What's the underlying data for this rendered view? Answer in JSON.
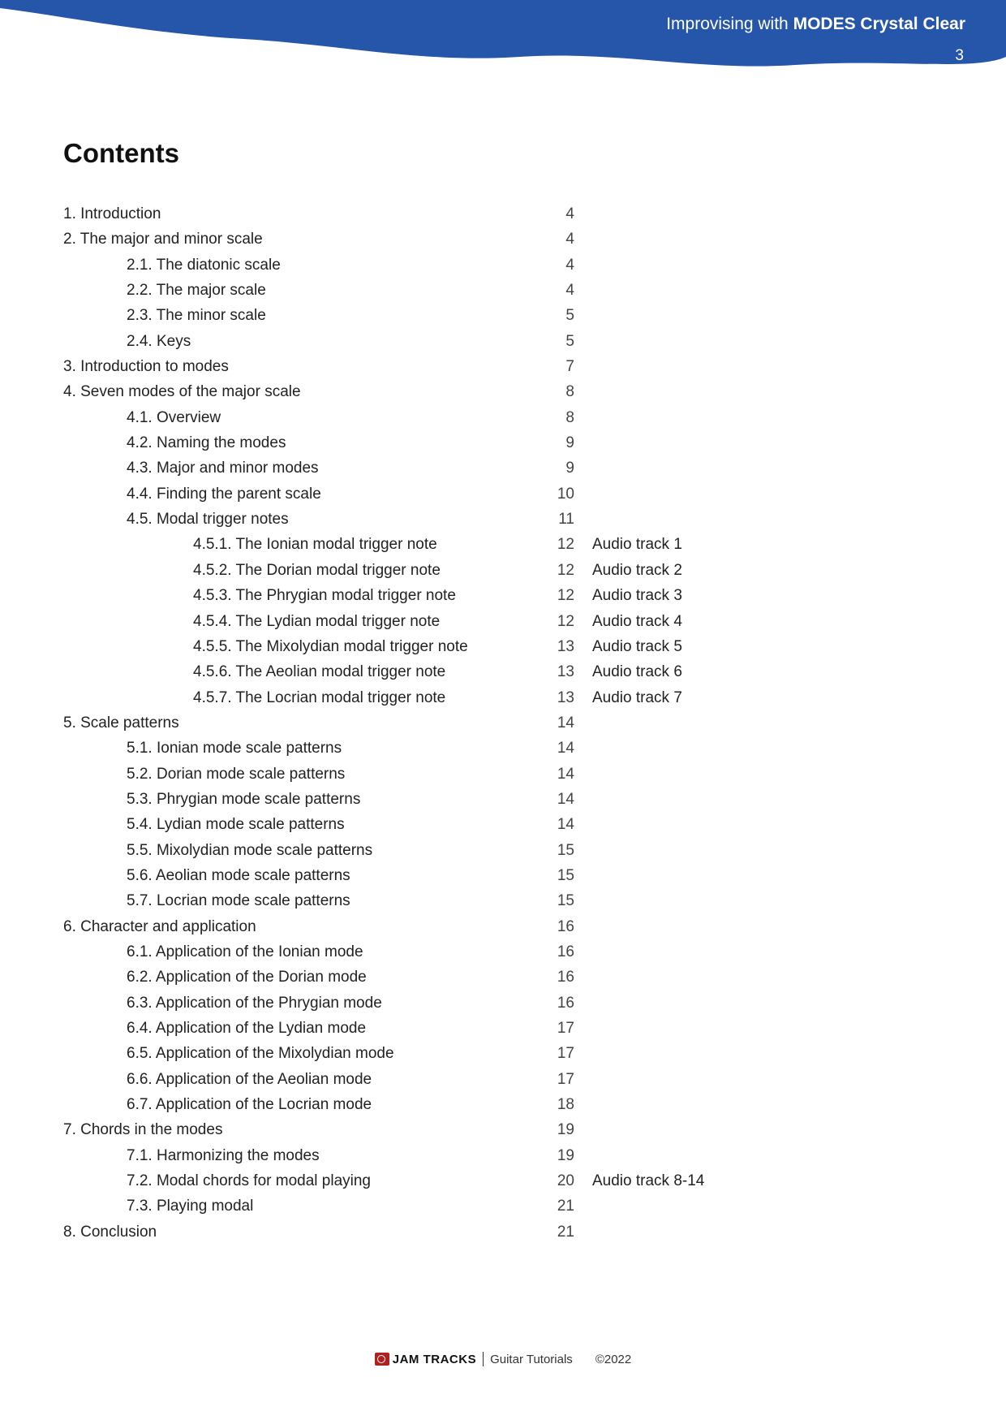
{
  "header": {
    "prefix": "Improvising with ",
    "title_bold": "MODES Crystal Clear",
    "page_number": "3",
    "band_color": "#2556a9"
  },
  "contents_title": "Contents",
  "toc": [
    {
      "label": "1. Introduction",
      "page": "4",
      "indent": 0
    },
    {
      "label": "2. The major and minor scale",
      "page": "4",
      "indent": 0
    },
    {
      "label": "2.1. The diatonic scale",
      "page": "4",
      "indent": 1
    },
    {
      "label": "2.2. The major scale",
      "page": "4",
      "indent": 1
    },
    {
      "label": "2.3. The minor scale",
      "page": "5",
      "indent": 1
    },
    {
      "label": "2.4. Keys",
      "page": "5",
      "indent": 1
    },
    {
      "label": "3. Introduction to modes",
      "page": "7",
      "indent": 0
    },
    {
      "label": "4. Seven modes of the major scale",
      "page": "8",
      "indent": 0
    },
    {
      "label": "4.1. Overview",
      "page": "8",
      "indent": 1
    },
    {
      "label": "4.2. Naming the modes",
      "page": "9",
      "indent": 1
    },
    {
      "label": "4.3. Major and minor modes",
      "page": "9",
      "indent": 1
    },
    {
      "label": "4.4. Finding the parent scale",
      "page": "10",
      "indent": 1
    },
    {
      "label": "4.5. Modal trigger notes",
      "page": "11",
      "indent": 1
    },
    {
      "label": "4.5.1. The Ionian modal trigger note",
      "page": "12",
      "indent": 2,
      "audio": "Audio track 1"
    },
    {
      "label": "4.5.2. The Dorian modal trigger note",
      "page": "12",
      "indent": 2,
      "audio": "Audio track 2"
    },
    {
      "label": "4.5.3. The Phrygian modal trigger note",
      "page": "12",
      "indent": 2,
      "audio": "Audio track 3"
    },
    {
      "label": "4.5.4. The Lydian modal trigger note",
      "page": "12",
      "indent": 2,
      "audio": "Audio track 4"
    },
    {
      "label": "4.5.5. The Mixolydian modal trigger note",
      "page": "13",
      "indent": 2,
      "audio": "Audio track 5"
    },
    {
      "label": "4.5.6. The Aeolian modal trigger note",
      "page": "13",
      "indent": 2,
      "audio": "Audio track 6"
    },
    {
      "label": "4.5.7. The Locrian modal trigger note",
      "page": "13",
      "indent": 2,
      "audio": "Audio track 7"
    },
    {
      "label": "5. Scale patterns",
      "page": "14",
      "indent": 0
    },
    {
      "label": "5.1. Ionian mode scale patterns",
      "page": "14",
      "indent": 1
    },
    {
      "label": "5.2. Dorian mode scale patterns",
      "page": "14",
      "indent": 1
    },
    {
      "label": "5.3. Phrygian mode scale patterns",
      "page": "14",
      "indent": 1
    },
    {
      "label": "5.4. Lydian mode scale patterns",
      "page": "14",
      "indent": 1
    },
    {
      "label": "5.5. Mixolydian mode scale patterns",
      "page": "15",
      "indent": 1
    },
    {
      "label": "5.6. Aeolian mode scale patterns",
      "page": "15",
      "indent": 1
    },
    {
      "label": "5.7. Locrian mode scale patterns",
      "page": "15",
      "indent": 1
    },
    {
      "label": "6. Character and application",
      "page": "16",
      "indent": 0
    },
    {
      "label": "6.1. Application of the Ionian mode",
      "page": "16",
      "indent": 1
    },
    {
      "label": "6.2. Application of the Dorian mode",
      "page": "16",
      "indent": 1
    },
    {
      "label": "6.3. Application of the Phrygian mode",
      "page": "16",
      "indent": 1
    },
    {
      "label": "6.4. Application of the Lydian mode",
      "page": "17",
      "indent": 1
    },
    {
      "label": "6.5. Application of the Mixolydian mode",
      "page": "17",
      "indent": 1
    },
    {
      "label": "6.6. Application of the Aeolian mode",
      "page": "17",
      "indent": 1
    },
    {
      "label": "6.7. Application of the Locrian mode",
      "page": "18",
      "indent": 1
    },
    {
      "label": "7. Chords in the modes",
      "page": "19",
      "indent": 0
    },
    {
      "label": "7.1. Harmonizing the modes",
      "page": "19",
      "indent": 1
    },
    {
      "label": "7.2. Modal chords for modal playing",
      "page": "20",
      "indent": 1,
      "audio": "Audio track 8-14"
    },
    {
      "label": "7.3. Playing modal",
      "page": "21",
      "indent": 1
    },
    {
      "label": "8. Conclusion",
      "page": "21",
      "indent": 0
    }
  ],
  "footer": {
    "brand": "JAM TRACKS",
    "brand_sub": "Guitar Tutorials",
    "copyright": "©2022"
  }
}
